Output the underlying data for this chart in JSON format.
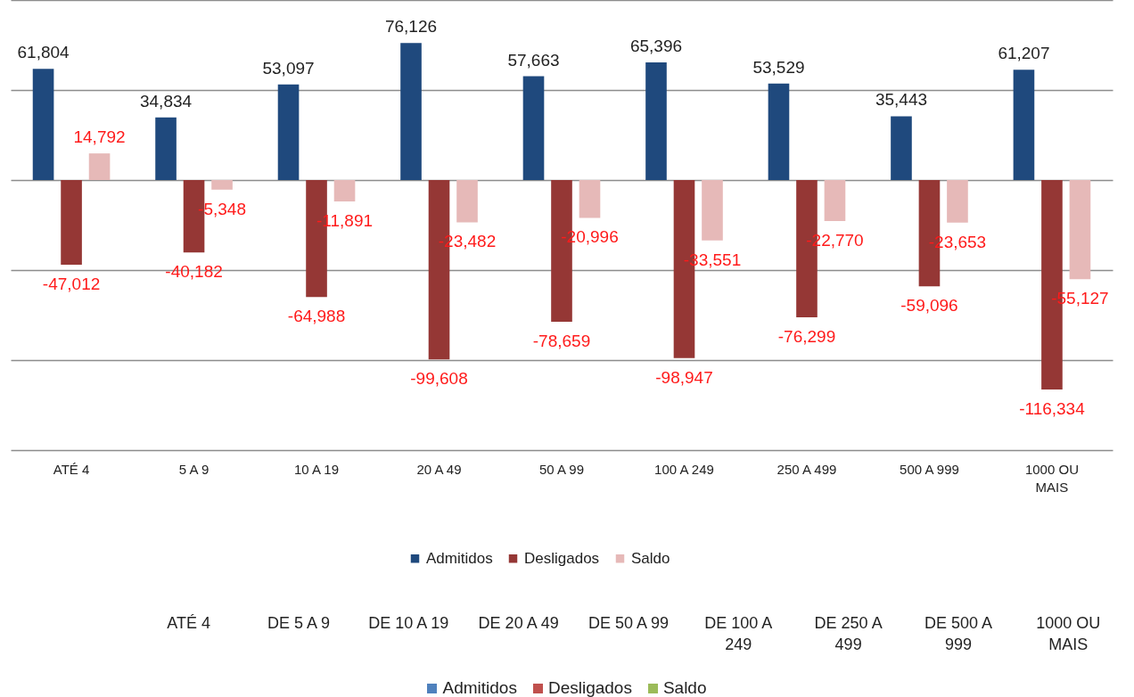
{
  "chart_data": [
    {
      "type": "bar",
      "categories": [
        "ATÉ 4",
        "5 A 9",
        "10 A 19",
        "20 A 49",
        "50 A 99",
        "100 A 249",
        "250 A 499",
        "500 A 999",
        "1000 OU MAIS"
      ],
      "series": [
        {
          "name": "Admitidos",
          "color": "#1f497d",
          "values": [
            61804,
            34834,
            53097,
            76126,
            57663,
            65396,
            53529,
            35443,
            61207
          ],
          "value_labels": [
            "61,804",
            "34,834",
            "53,097",
            "76,126",
            "57,663",
            "65,396",
            "53,529",
            "35,443",
            "61,207"
          ]
        },
        {
          "name": "Desligados",
          "color": "#953735",
          "values": [
            -47012,
            -40182,
            -64988,
            -99608,
            -78659,
            -98947,
            -76299,
            -59096,
            -116334
          ],
          "value_labels": [
            "-47,012",
            "-40,182",
            "-64,988",
            "-99,608",
            "-78,659",
            "-98,947",
            "-76,299",
            "-59,096",
            "-116,334"
          ]
        },
        {
          "name": "Saldo",
          "color": "#e6b9b8",
          "values": [
            14792,
            -5348,
            -11891,
            -23482,
            -20996,
            -33551,
            -22770,
            -23653,
            -55127
          ],
          "value_labels": [
            "14,792",
            "-5,348",
            "-11,891",
            "-23,482",
            "-20,996",
            "-33,551",
            "-22,770",
            "-23,653",
            "-55,127"
          ]
        }
      ],
      "tick_labels": "x",
      "grid": "y",
      "legend": "bottom"
    },
    {
      "type": "other",
      "categories": [
        "ATÉ 4",
        "DE 5 A 9",
        "DE 10 A 19",
        "DE 20 A 49",
        "DE 50 A 99",
        "DE 100 A 249",
        "DE 250 A 499",
        "DE 500 A 999",
        "1000 OU MAIS"
      ],
      "series": [
        {
          "name": "Admitidos",
          "color": "#4f81bd",
          "values": [
            null,
            null,
            null,
            null,
            null,
            null,
            null,
            null,
            null
          ]
        },
        {
          "name": "Desligados",
          "color": "#c0504d",
          "values": [
            null,
            null,
            null,
            null,
            null,
            null,
            null,
            null,
            null
          ]
        },
        {
          "name": "Saldo",
          "color": "#9bbb59",
          "values": [
            null,
            null,
            null,
            null,
            null,
            null,
            null,
            null,
            null
          ]
        }
      ],
      "legend": "bottom"
    }
  ]
}
